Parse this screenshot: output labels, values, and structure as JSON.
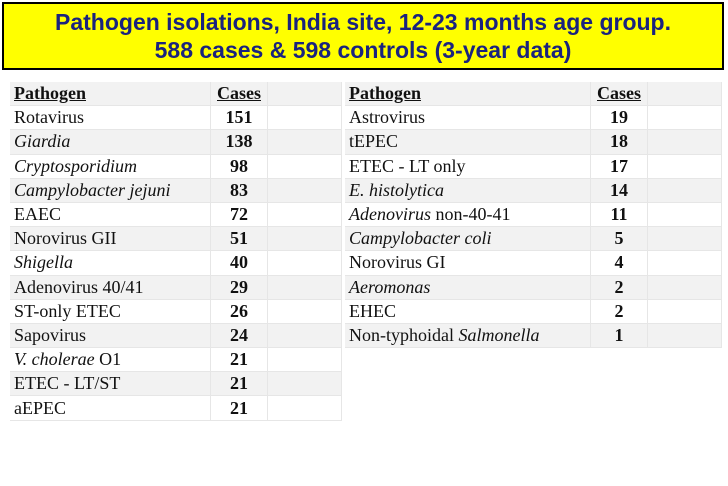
{
  "title": {
    "line1": "Pathogen isolations, India site, 12-23 months age group.",
    "line2": "588 cases & 598 controls (3-year data)"
  },
  "left_table": {
    "headers": {
      "pathogen": "Pathogen",
      "cases": "Cases"
    },
    "rows": [
      {
        "pre": "Rotavirus",
        "ital": "",
        "post": "",
        "cases": "151"
      },
      {
        "pre": "",
        "ital": "Giardia",
        "post": "",
        "cases": "138"
      },
      {
        "pre": "",
        "ital": "Cryptosporidium",
        "post": "",
        "cases": "98"
      },
      {
        "pre": "",
        "ital": "Campylobacter jejuni",
        "post": "",
        "cases": "83"
      },
      {
        "pre": "EAEC",
        "ital": "",
        "post": "",
        "cases": "72"
      },
      {
        "pre": "Norovirus  GII",
        "ital": "",
        "post": "",
        "cases": "51"
      },
      {
        "pre": "",
        "ital": "Shigella",
        "post": "",
        "cases": "40"
      },
      {
        "pre": "Adenovirus 40/41",
        "ital": "",
        "post": "",
        "cases": "29"
      },
      {
        "pre": "ST-only ETEC",
        "ital": "",
        "post": "",
        "cases": "26"
      },
      {
        "pre": "Sapovirus",
        "ital": "",
        "post": "",
        "cases": "24"
      },
      {
        "pre": "",
        "ital": "V. cholerae",
        "post": " O1",
        "cases": "21"
      },
      {
        "pre": "ETEC - LT/ST",
        "ital": "",
        "post": "",
        "cases": "21"
      },
      {
        "pre": "aEPEC",
        "ital": "",
        "post": "",
        "cases": "21"
      }
    ]
  },
  "right_table": {
    "headers": {
      "pathogen": "Pathogen",
      "cases": "Cases"
    },
    "rows": [
      {
        "pre": "Astrovirus",
        "ital": "",
        "post": "",
        "cases": "19"
      },
      {
        "pre": "tEPEC",
        "ital": "",
        "post": "",
        "cases": "18"
      },
      {
        "pre": "ETEC - LT only",
        "ital": "",
        "post": "",
        "cases": "17"
      },
      {
        "pre": "",
        "ital": "E. histolytica",
        "post": "",
        "cases": "14"
      },
      {
        "pre": "",
        "ital": "Adenovirus",
        "post": " non-40-41",
        "cases": "11"
      },
      {
        "pre": "",
        "ital": "Campylobacter coli",
        "post": "",
        "cases": "5"
      },
      {
        "pre": "Norovirus  GI",
        "ital": "",
        "post": "",
        "cases": "4"
      },
      {
        "pre": "",
        "ital": "Aeromonas",
        "post": "",
        "cases": "2"
      },
      {
        "pre": "EHEC",
        "ital": "",
        "post": "",
        "cases": "2"
      },
      {
        "pre": "Non-typhoidal ",
        "ital": "Salmonella",
        "post": "",
        "cases": "1"
      }
    ]
  }
}
